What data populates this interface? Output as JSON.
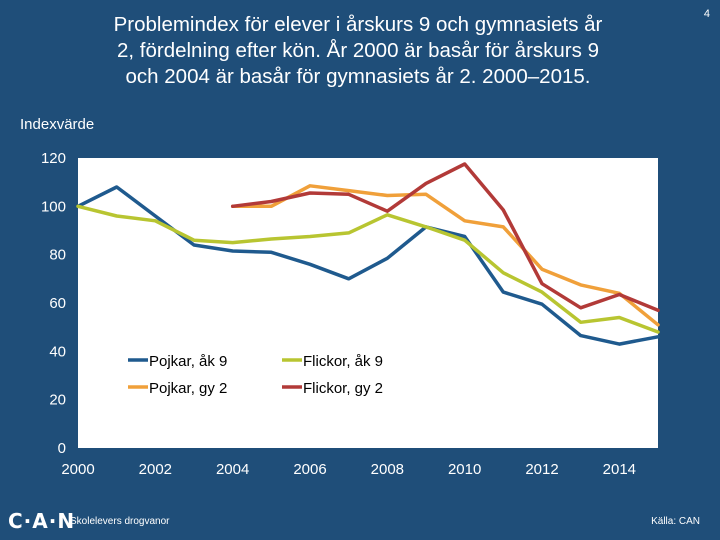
{
  "slide_number": "4",
  "title_lines": [
    "Problemindex för elever i årskurs 9 och gymnasiets år",
    "2, fördelning efter kön. År 2000 är basår för årskurs 9",
    "och 2004 är basår för gymnasiets år 2.  2000–2015."
  ],
  "ylabel": "Indexvärde",
  "footer": {
    "logo": "C·A·N",
    "subtitle": "Skolelevers drogvanor",
    "source": "Källa: CAN"
  },
  "chart_data": {
    "type": "line",
    "ylabel": "Indexvärde",
    "xlim": [
      2000,
      2015
    ],
    "ylim": [
      0,
      120
    ],
    "yticks": [
      0,
      20,
      40,
      60,
      80,
      100,
      120
    ],
    "xticks": [
      2000,
      2002,
      2004,
      2006,
      2008,
      2010,
      2012,
      2014
    ],
    "grid": false,
    "legend": "center-left",
    "series": [
      {
        "name": "Pojkar, åk 9",
        "color": "#1f5a8e",
        "x": [
          2000,
          2001,
          2002,
          2003,
          2004,
          2005,
          2006,
          2007,
          2008,
          2009,
          2010,
          2011,
          2012,
          2013,
          2014,
          2015
        ],
        "values": [
          100,
          108,
          96,
          84,
          81.5,
          81,
          76,
          70,
          78.5,
          91.5,
          87.5,
          64.5,
          59.5,
          46.5,
          43,
          46
        ]
      },
      {
        "name": "Flickor, åk 9",
        "color": "#b8c531",
        "x": [
          2000,
          2001,
          2002,
          2003,
          2004,
          2005,
          2006,
          2007,
          2008,
          2009,
          2010,
          2011,
          2012,
          2013,
          2014,
          2015
        ],
        "values": [
          100,
          96,
          94,
          86,
          85,
          86.5,
          87.5,
          89,
          96.5,
          91.5,
          86,
          72.5,
          64.5,
          52,
          54,
          48
        ]
      },
      {
        "name": "Pojkar, gy 2",
        "color": "#f0a03a",
        "x": [
          2004,
          2005,
          2006,
          2007,
          2008,
          2009,
          2010,
          2011,
          2012,
          2013,
          2014,
          2015
        ],
        "values": [
          100,
          100,
          108.5,
          106.5,
          104.5,
          105,
          94,
          91.5,
          74,
          67.5,
          64,
          51
        ]
      },
      {
        "name": "Flickor, gy 2",
        "color": "#b23a38",
        "x": [
          2004,
          2005,
          2006,
          2007,
          2008,
          2009,
          2010,
          2011,
          2012,
          2013,
          2014,
          2015
        ],
        "values": [
          100,
          102,
          105.5,
          105,
          98,
          109.5,
          117.5,
          98.5,
          68,
          58,
          63.5,
          57
        ]
      }
    ]
  }
}
